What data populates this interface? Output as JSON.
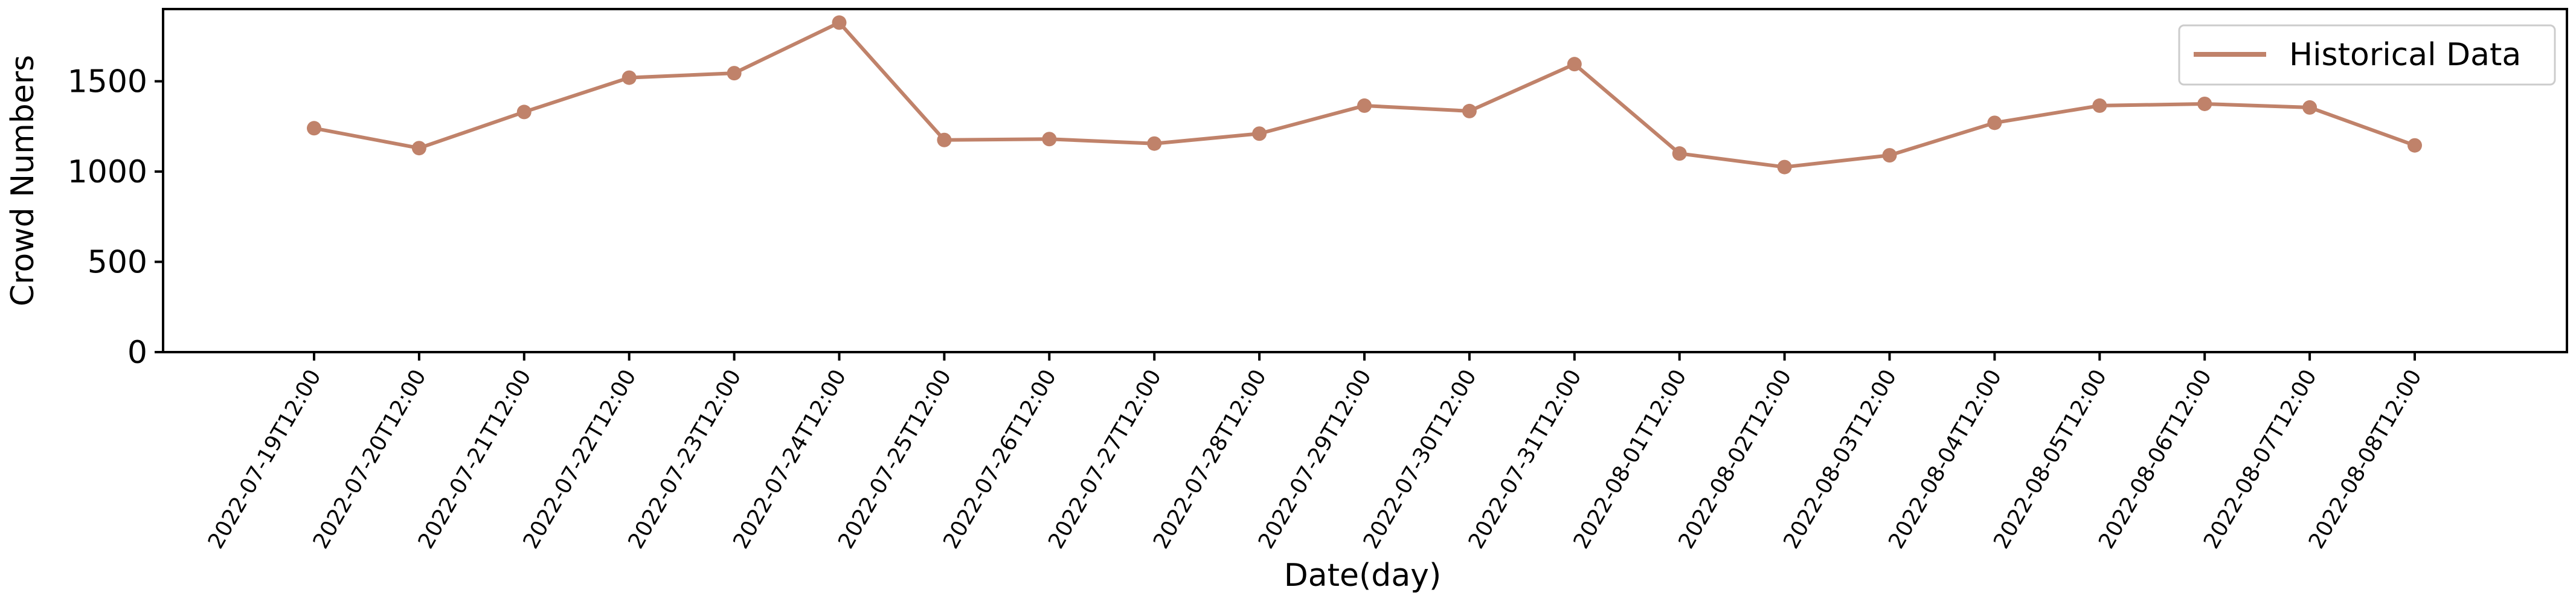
{
  "chart_data": {
    "type": "line",
    "xlabel": "Date(day)",
    "ylabel": "Crowd Numbers",
    "ylim": [
      0,
      1900
    ],
    "yticks": [
      0,
      500,
      1000,
      1500
    ],
    "grid": false,
    "legend_position": "top-right",
    "categories": [
      "2022-07-19T12:00",
      "2022-07-20T12:00",
      "2022-07-21T12:00",
      "2022-07-22T12:00",
      "2022-07-23T12:00",
      "2022-07-24T12:00",
      "2022-07-25T12:00",
      "2022-07-26T12:00",
      "2022-07-27T12:00",
      "2022-07-28T12:00",
      "2022-07-29T12:00",
      "2022-07-30T12:00",
      "2022-07-31T12:00",
      "2022-08-01T12:00",
      "2022-08-02T12:00",
      "2022-08-03T12:00",
      "2022-08-04T12:00",
      "2022-08-05T12:00",
      "2022-08-06T12:00",
      "2022-08-07T12:00",
      "2022-08-08T12:00"
    ],
    "series": [
      {
        "name": "Historical Data",
        "color": "#c0826a",
        "marker": "circle",
        "values": [
          1240,
          1130,
          1330,
          1520,
          1545,
          1825,
          1175,
          1180,
          1155,
          1210,
          1365,
          1335,
          1595,
          1100,
          1025,
          1090,
          1270,
          1365,
          1375,
          1355,
          1145
        ]
      }
    ]
  }
}
